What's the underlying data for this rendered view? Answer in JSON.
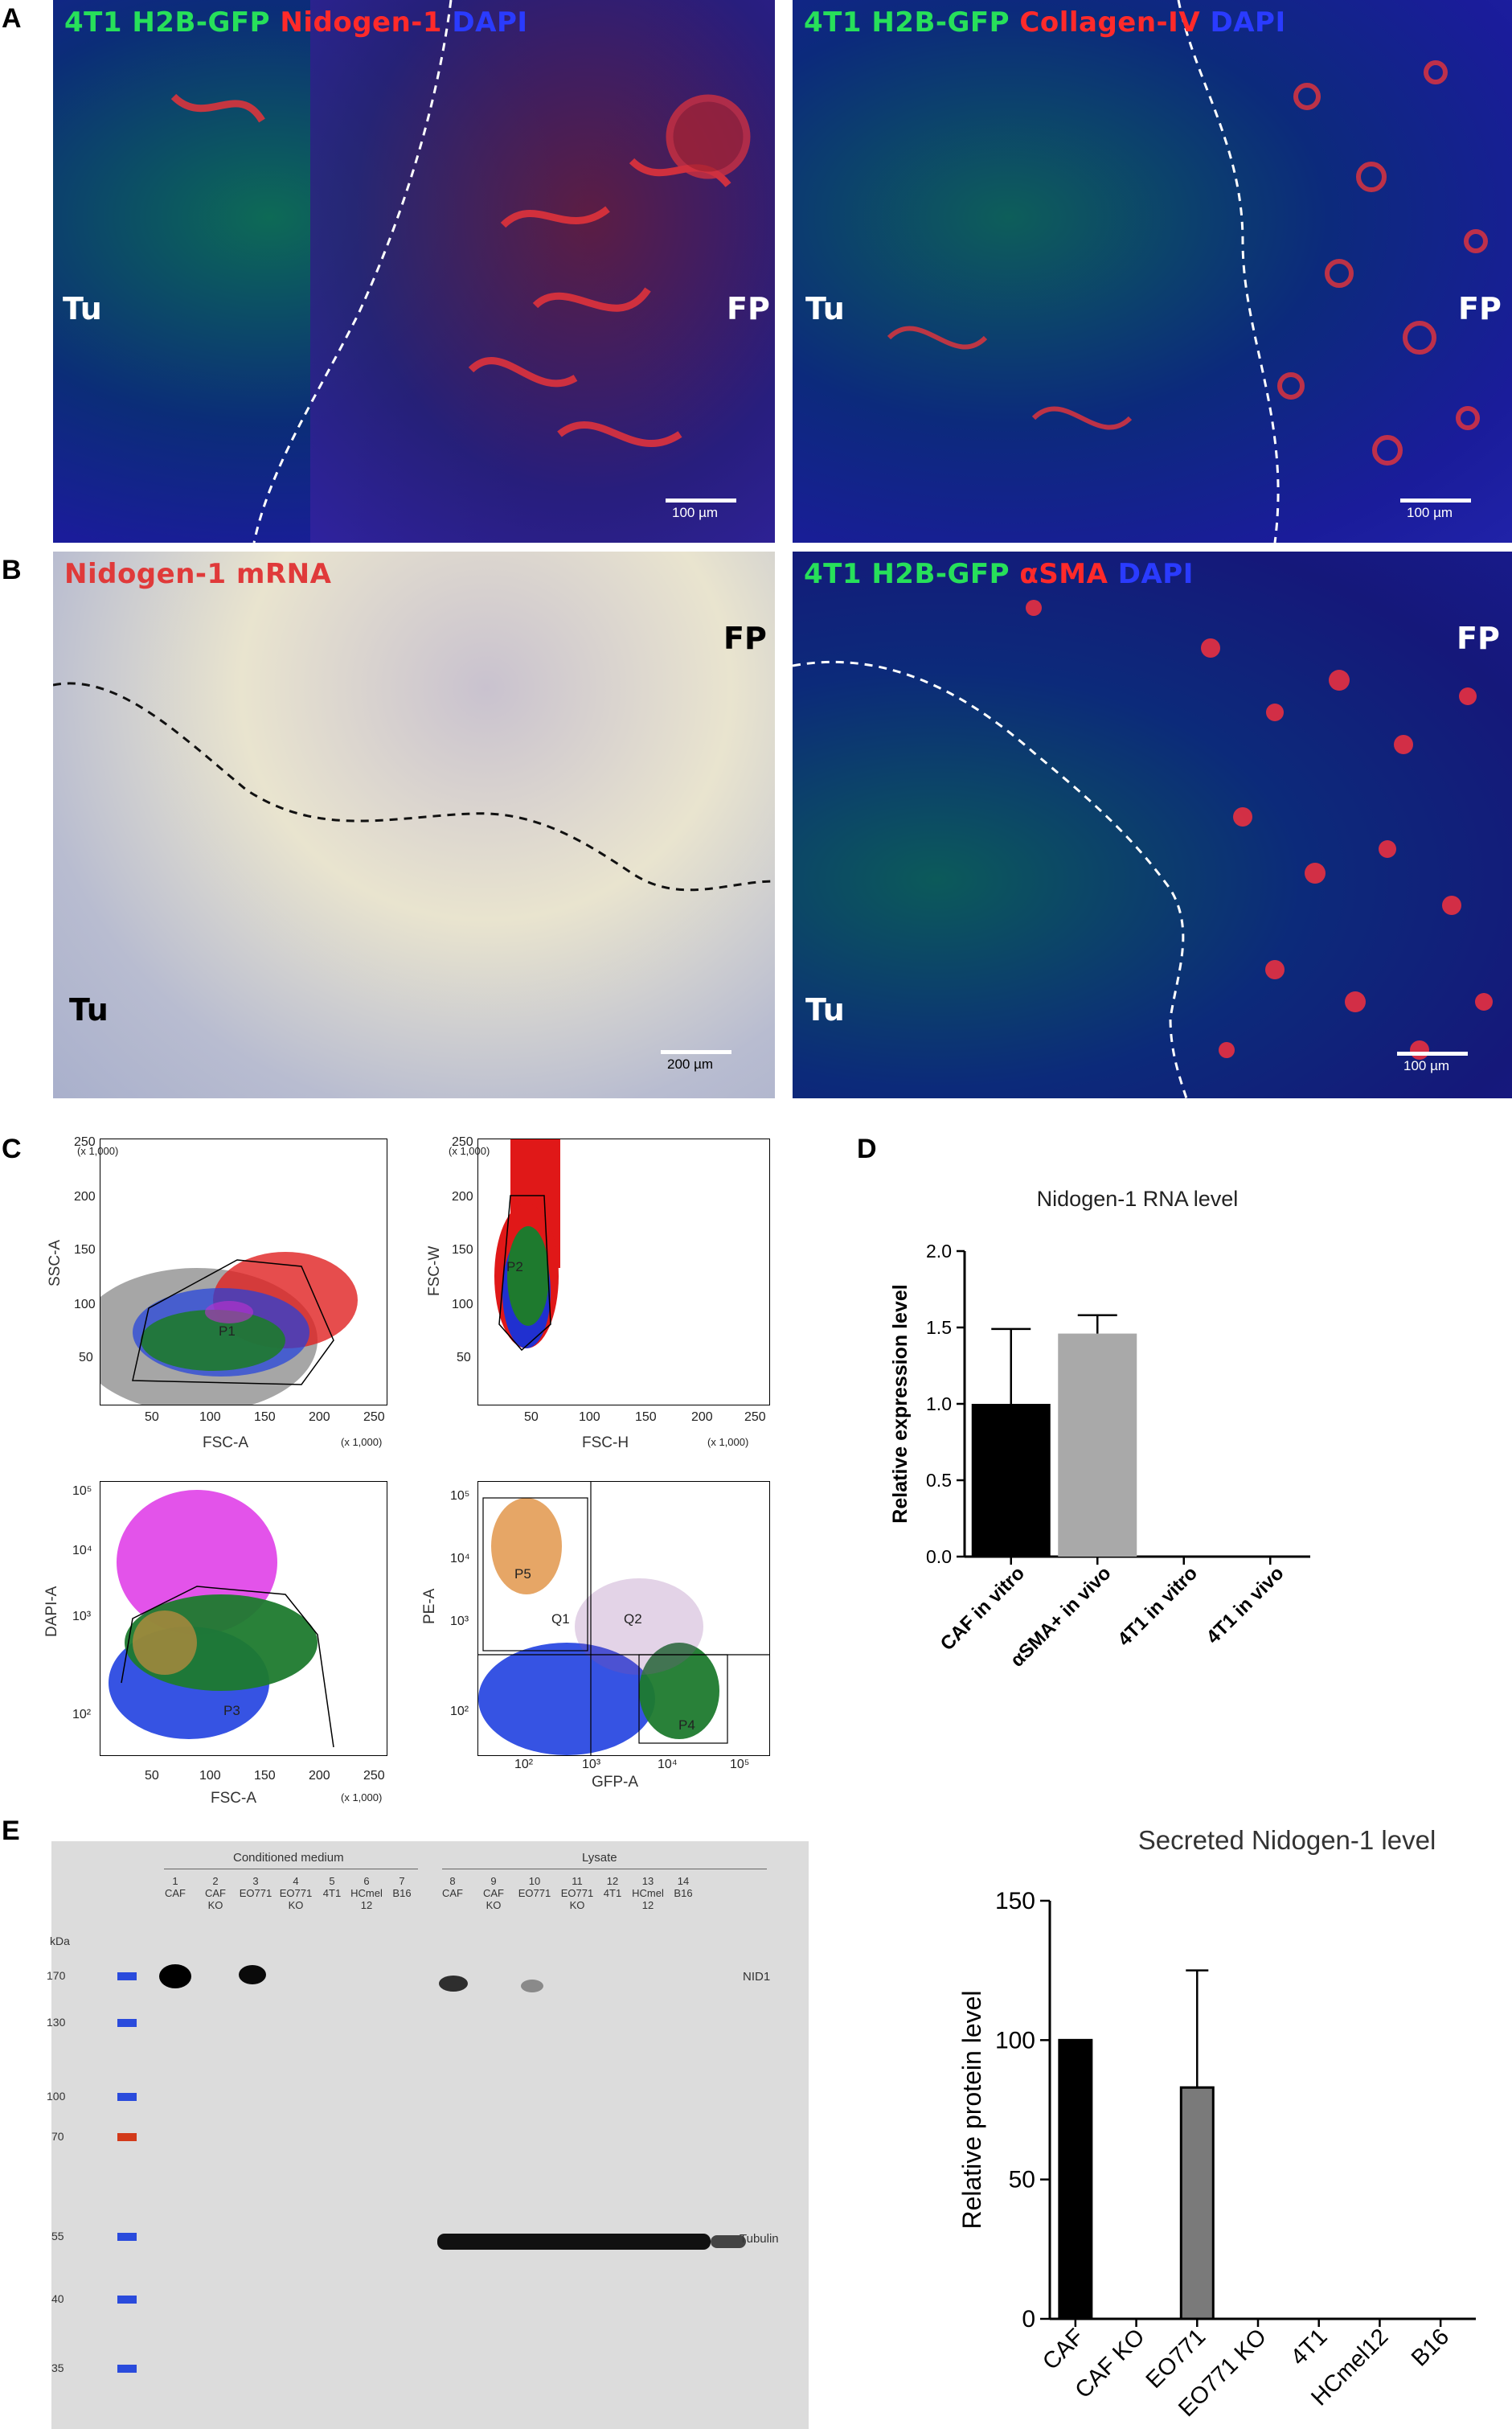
{
  "panels": {
    "A": "A",
    "B": "B",
    "C": "C",
    "D": "D",
    "E": "E"
  },
  "colors": {
    "green": "#27e05a",
    "red": "#ff2a2a",
    "blue": "#2a3bff",
    "bar_black": "#000000",
    "bar_grey": "#a9a9a9",
    "bar_darkgrey": "#7a7a7a",
    "marker_blue": "#2a4bdc",
    "marker_red": "#d23a1a"
  },
  "panelA": {
    "left": {
      "t1": "4T1 H2B-GFP",
      "t2": "Nidogen-1",
      "t3": "DAPI",
      "tu": "Tu",
      "fp": "FP",
      "scale": "100 µm"
    },
    "right": {
      "t1": "4T1 H2B-GFP",
      "t2": "Collagen-IV",
      "t3": "DAPI",
      "tu": "Tu",
      "fp": "FP",
      "scale": "100 µm"
    }
  },
  "panelB": {
    "left": {
      "t1": "Nidogen-1 mRNA",
      "tu": "Tu",
      "fp": "FP",
      "scale": "200 µm"
    },
    "right": {
      "t1": "4T1 H2B-GFP",
      "t2": "αSMA",
      "t3": "DAPI",
      "tu": "Tu",
      "fp": "FP",
      "scale": "100 µm"
    }
  },
  "panelC": {
    "plot1": {
      "y_label": "SSC-A",
      "x_label": "FSC-A",
      "y_mult": "(x 1,000)",
      "x_mult": "(x 1,000)",
      "yticks": [
        "250",
        "200",
        "150",
        "100",
        "50"
      ],
      "xticks": [
        "50",
        "100",
        "150",
        "200",
        "250"
      ],
      "gate": "P1"
    },
    "plot2": {
      "y_label": "FSC-W",
      "x_label": "FSC-H",
      "y_mult": "(x 1,000)",
      "x_mult": "(x 1,000)",
      "yticks": [
        "250",
        "200",
        "150",
        "100",
        "50"
      ],
      "xticks": [
        "50",
        "100",
        "150",
        "200",
        "250"
      ],
      "gate": "P2"
    },
    "plot3": {
      "y_label": "DAPI-A",
      "x_label": "FSC-A",
      "x_mult": "(x 1,000)",
      "yticks": [
        "10⁵",
        "10⁴",
        "10³",
        "10²"
      ],
      "xticks": [
        "50",
        "100",
        "150",
        "200",
        "250"
      ],
      "gate": "P3"
    },
    "plot4": {
      "y_label": "PE-A",
      "x_label": "GFP-A",
      "yticks": [
        "10⁵",
        "10⁴",
        "10³",
        "10²"
      ],
      "xticks": [
        "10²",
        "10³",
        "10⁴",
        "10⁵"
      ],
      "q1": "Q1",
      "q2": "Q2",
      "p5": "P5",
      "p4": "P4"
    }
  },
  "chart_data": [
    {
      "type": "bar",
      "title": "Nidogen-1 RNA level",
      "ylabel": "Relative expression level",
      "xlabel": "",
      "ylim": [
        0,
        2.0
      ],
      "yticks": [
        "0.0",
        "0.5",
        "1.0",
        "1.5",
        "2.0"
      ],
      "categories": [
        "CAF in vitro",
        "αSMA+ in vivo",
        "4T1 in vitro",
        "4T1 in vivo"
      ],
      "values": [
        1.0,
        1.46,
        0.0,
        0.0
      ],
      "errors": [
        0.49,
        0.12,
        0,
        0
      ],
      "bar_colors": [
        "#000000",
        "#a9a9a9",
        "#000000",
        "#000000"
      ]
    },
    {
      "type": "bar",
      "title": "Secreted Nidogen-1 level",
      "ylabel": "Relative protein level",
      "xlabel": "",
      "ylim": [
        0,
        150
      ],
      "yticks": [
        "0",
        "50",
        "100",
        "150"
      ],
      "categories": [
        "CAF",
        "CAF KO",
        "EO771",
        "EO771 KO",
        "4T1",
        "HCmel12",
        "B16"
      ],
      "values": [
        100,
        0,
        83,
        0,
        0,
        0,
        0
      ],
      "errors": [
        0,
        0,
        42,
        0,
        0,
        0,
        0
      ],
      "bar_colors": [
        "#000000",
        "#000000",
        "#7a7a7a",
        "#000000",
        "#000000",
        "#000000",
        "#000000"
      ]
    }
  ],
  "blot": {
    "group1": "Conditioned medium",
    "group2": "Lysate",
    "kda": "kDa",
    "lane_nums": [
      "1",
      "2",
      "3",
      "4",
      "5",
      "6",
      "7",
      "8",
      "9",
      "10",
      "11",
      "12",
      "13",
      "14"
    ],
    "lane_names": [
      "CAF",
      "CAF KO",
      "EO771",
      "EO771 KO",
      "4T1",
      "HCmel 12",
      "B16",
      "CAF",
      "CAF KO",
      "EO771",
      "EO771 KO",
      "4T1",
      "HCmel 12",
      "B16"
    ],
    "markers": [
      "170",
      "130",
      "100",
      "70",
      "55",
      "40",
      "35"
    ],
    "nid1": "NID1",
    "tubulin": "Tubulin"
  }
}
